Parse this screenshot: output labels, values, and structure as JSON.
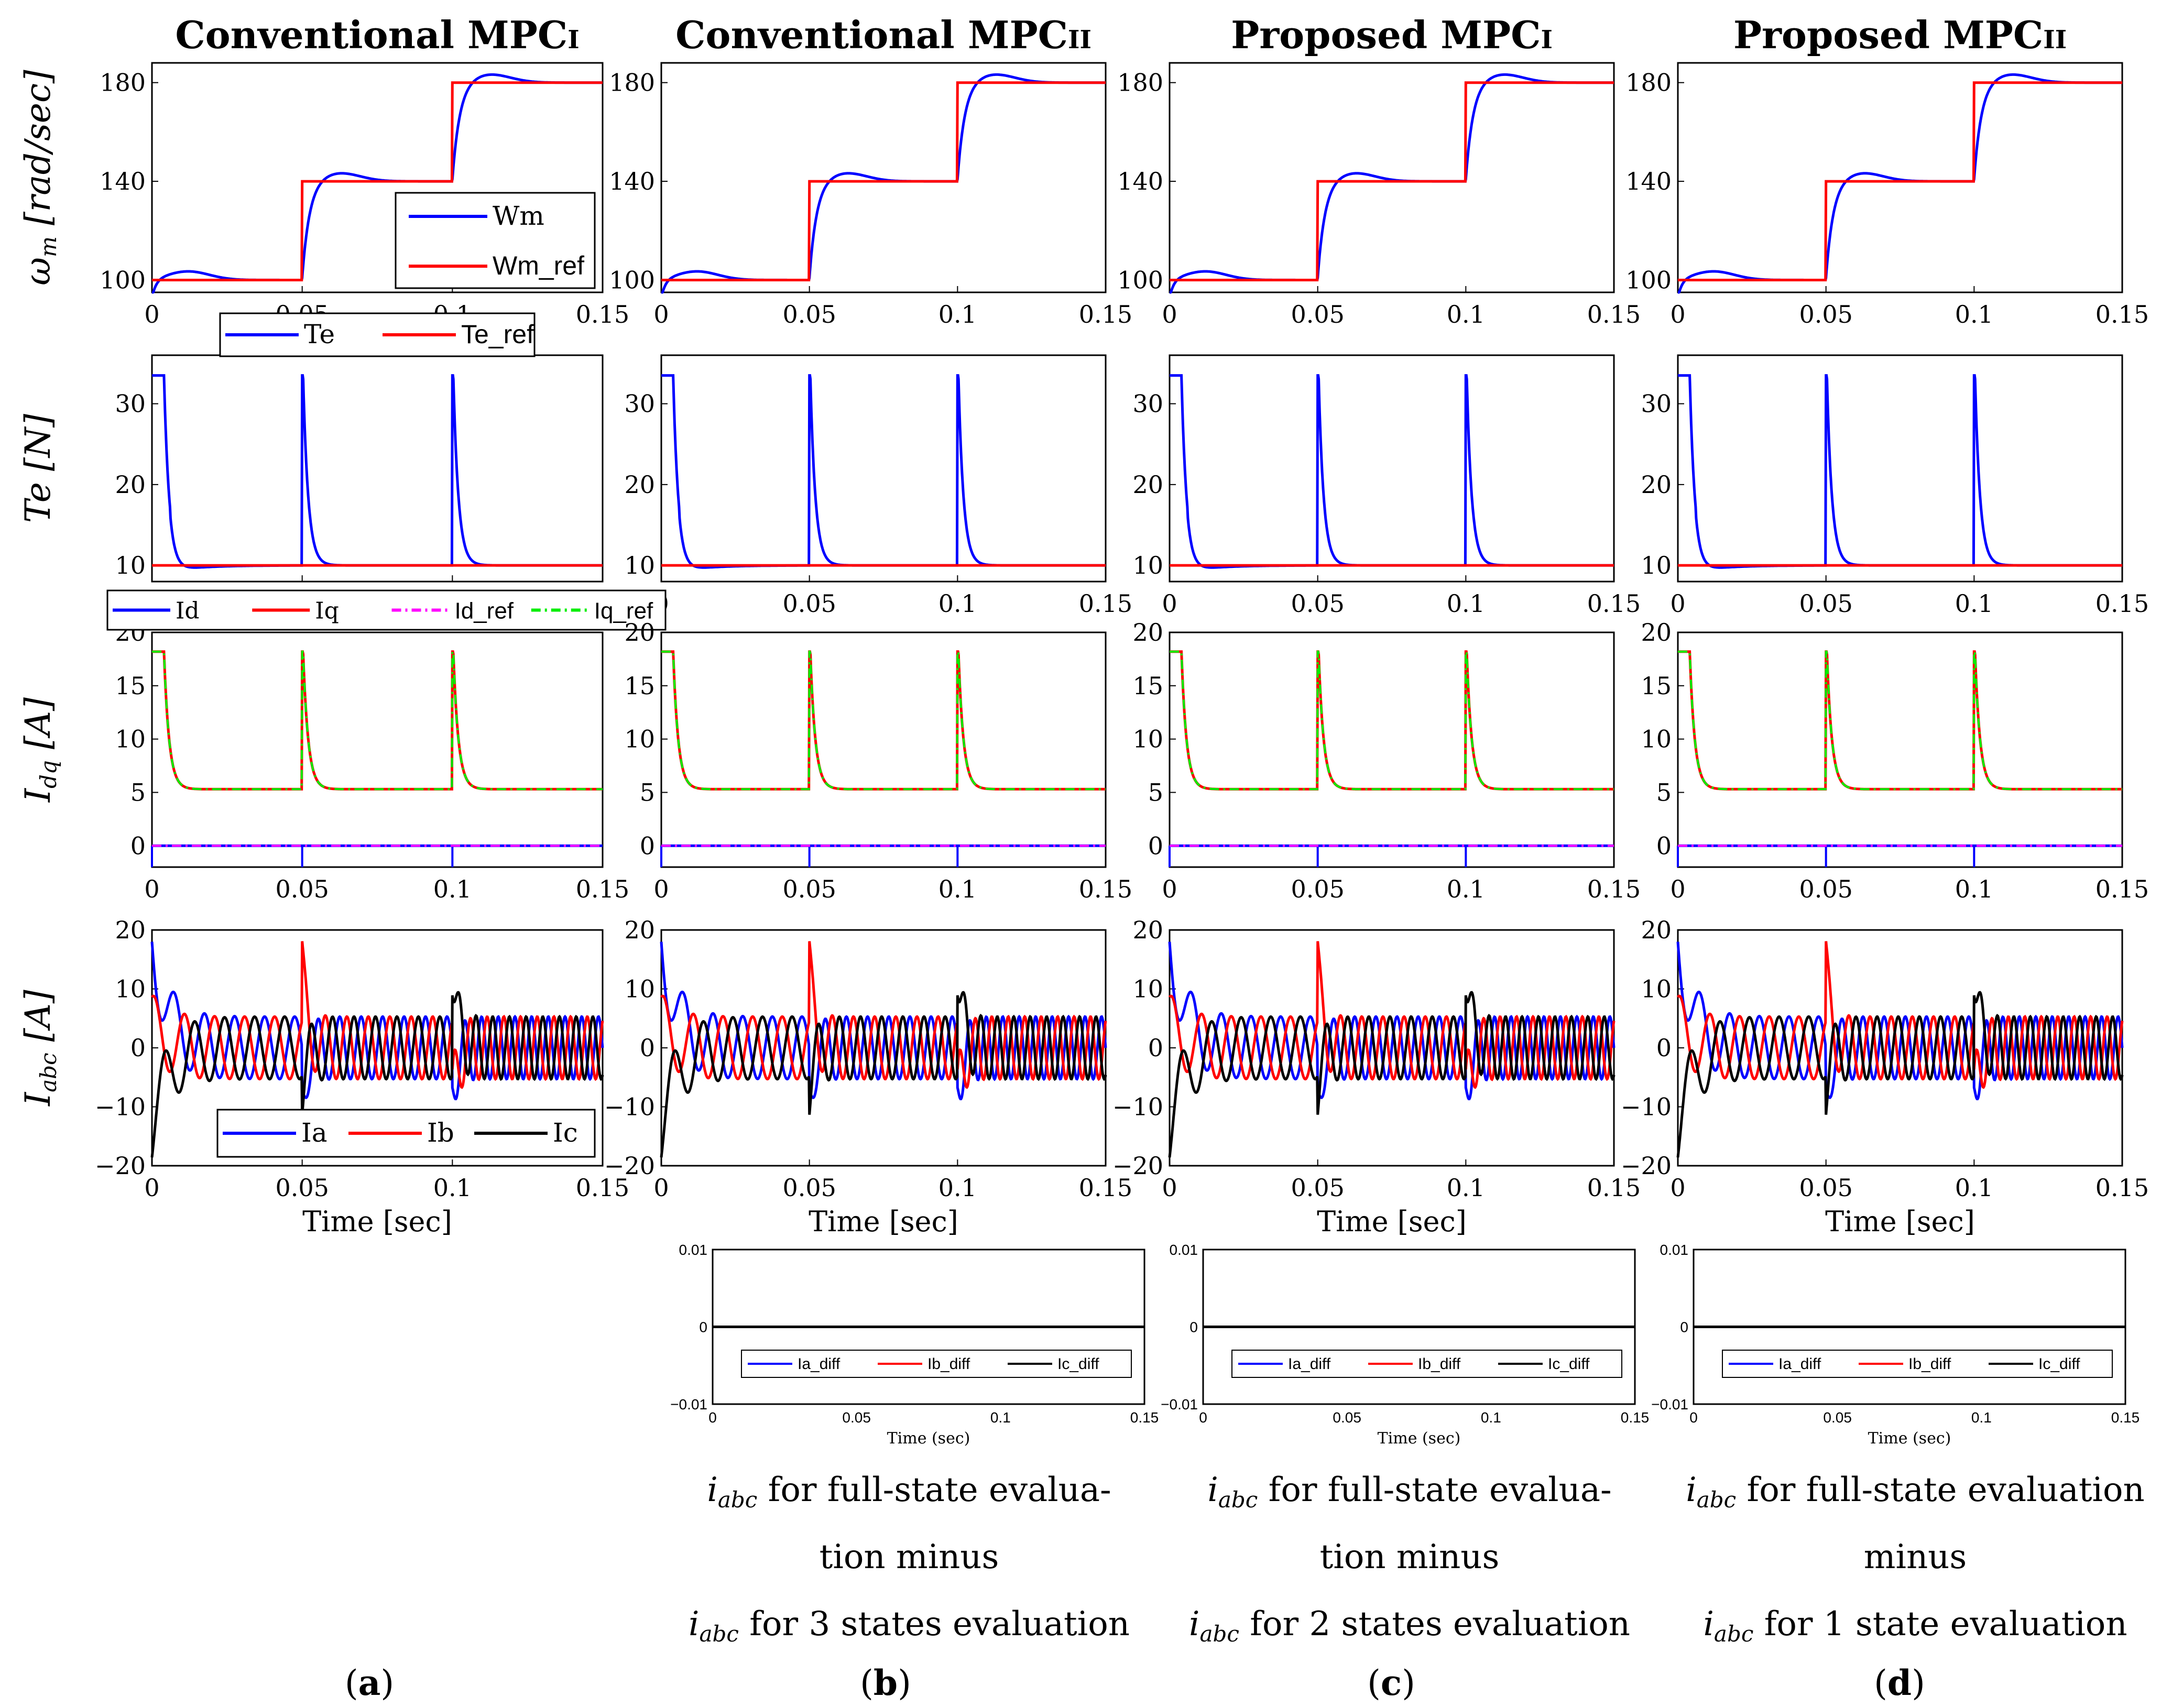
{
  "chart_data": {
    "type": "line",
    "columns": [
      {
        "title_main": "Conventional MPC",
        "title_sub": "I",
        "label": "a"
      },
      {
        "title_main": "Conventional MPC",
        "title_sub": "II",
        "label": "b"
      },
      {
        "title_main": "Proposed MPC",
        "title_sub": "I",
        "label": "c"
      },
      {
        "title_main": "Proposed MPC",
        "title_sub": "II",
        "label": "d"
      }
    ],
    "panels": [
      {
        "id": "speed",
        "ylabel_main": "ω",
        "ylabel_sub": "m",
        "ylabel_rest": " [rad/sec]",
        "ylim": [
          95,
          188
        ],
        "yticks": [
          "100",
          "140",
          "180"
        ],
        "ytick_values": [
          100,
          140,
          180
        ],
        "xlim": [
          0,
          0.15
        ],
        "xticks": [
          "0",
          "0.05",
          "0.1",
          "0.15"
        ],
        "series": [
          {
            "name": "Wm",
            "color": "#0000ff",
            "steps": [
              [
                0,
                100
              ],
              [
                0.05,
                140
              ],
              [
                0.1,
                180
              ]
            ],
            "overshoot": 3.5
          },
          {
            "name": "Wm_ref",
            "color": "#ff0000",
            "steps": [
              [
                0,
                100
              ],
              [
                0.05,
                140
              ],
              [
                0.1,
                180
              ]
            ]
          }
        ],
        "legend": [
          "Wm",
          "Wm_ref"
        ]
      },
      {
        "id": "torque",
        "ylabel_main": "Te",
        "ylabel_sub": "",
        "ylabel_rest": " [N]",
        "ylim": [
          8,
          36
        ],
        "yticks": [
          "10",
          "20",
          "30"
        ],
        "ytick_values": [
          10,
          20,
          30
        ],
        "xlim": [
          0,
          0.15
        ],
        "xticks": [
          "0",
          "0.05",
          "0.1",
          "0.15"
        ],
        "series": [
          {
            "name": "Te",
            "color": "#0000ff",
            "baseline": 10,
            "peak": 33.5
          },
          {
            "name": "Te_ref",
            "color": "#ff0000",
            "value": 10
          }
        ],
        "legend": [
          "Te",
          "Te_ref"
        ]
      },
      {
        "id": "idq",
        "ylabel_main": "I",
        "ylabel_sub": "dq",
        "ylabel_rest": " [A]",
        "ylim": [
          -2,
          20
        ],
        "yticks": [
          "0",
          "5",
          "10",
          "15",
          "20"
        ],
        "ytick_values": [
          0,
          5,
          10,
          15,
          20
        ],
        "xlim": [
          0,
          0.15
        ],
        "xticks": [
          "0",
          "0.05",
          "0.1",
          "0.15"
        ],
        "series": [
          {
            "name": "Id",
            "color": "#0000ff",
            "value": 0
          },
          {
            "name": "Iq",
            "color": "#ff0000",
            "baseline": 5.3,
            "peak": 18.2
          },
          {
            "name": "Id_ref",
            "color": "#ff00ff",
            "value": 0
          },
          {
            "name": "Iq_ref",
            "color": "#00ee00",
            "baseline": 5.3,
            "peak": 18.2
          }
        ],
        "legend": [
          "Id",
          "Iq",
          "Id_ref",
          "Iq_ref"
        ]
      },
      {
        "id": "iabc",
        "ylabel_main": "I",
        "ylabel_sub": "abc",
        "ylabel_rest": " [A]",
        "ylim": [
          -20,
          20
        ],
        "yticks": [
          "20",
          "10",
          "0",
          "−10",
          "−20"
        ],
        "ytick_values": [
          20,
          10,
          0,
          -10,
          -20
        ],
        "xlim": [
          0,
          0.15
        ],
        "xticks": [
          "0",
          "0.05",
          "0.1",
          "0.15"
        ],
        "xlabel": "Time [sec]",
        "series": [
          {
            "name": "Ia",
            "color": "#0000ff"
          },
          {
            "name": "Ib",
            "color": "#ff0000"
          },
          {
            "name": "Ic",
            "color": "#000000"
          }
        ],
        "amplitude": 5.3,
        "legend": [
          "Ia",
          "Ib",
          "Ic"
        ]
      }
    ],
    "diff_panels": {
      "ylim": [
        -0.01,
        0.01
      ],
      "yticks": [
        "0.01",
        "0",
        "−0.01"
      ],
      "ytick_values": [
        0.01,
        0,
        -0.01
      ],
      "xlim": [
        0,
        0.15
      ],
      "xticks": [
        "0",
        "0.05",
        "0.1",
        "0.15"
      ],
      "xlabel": "Time (sec)",
      "value": 0,
      "legend": [
        {
          "name": "Ia_diff",
          "color": "#0000ff"
        },
        {
          "name": "Ib_diff",
          "color": "#ff0000"
        },
        {
          "name": "Ic_diff",
          "color": "#000000"
        }
      ]
    },
    "captions": [
      {
        "col": 1,
        "lines": [
          "for full-state evalua-",
          "tion minus",
          "for 3 states evaluation"
        ],
        "sym_lines": [
          0,
          2
        ]
      },
      {
        "col": 2,
        "lines": [
          "for full-state evalua-",
          "tion minus",
          "for 2 states evaluation"
        ],
        "sym_lines": [
          0,
          2
        ]
      },
      {
        "col": 3,
        "lines": [
          "for full-state evaluation",
          "minus",
          "for 1 state evaluation"
        ],
        "sym_lines": [
          0,
          2
        ]
      }
    ],
    "caption_symbol": {
      "main": "i",
      "sub": "abc"
    }
  }
}
